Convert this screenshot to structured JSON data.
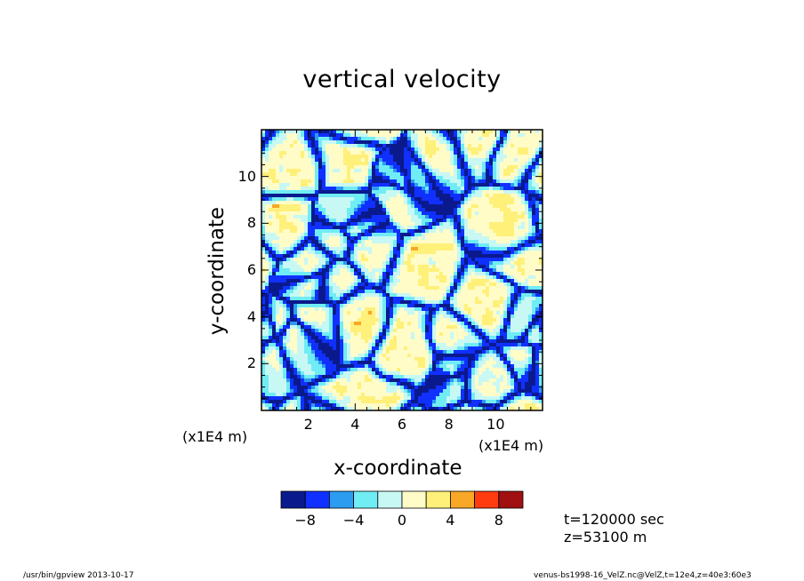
{
  "chart_data": {
    "type": "heatmap",
    "title": "vertical velocity",
    "xlabel": "x-coordinate",
    "ylabel": "y-coordinate",
    "x_unit_label": "(x1E4 m)",
    "y_unit_label": "(x1E4 m)",
    "xlim": [
      0,
      12
    ],
    "ylim": [
      0,
      12
    ],
    "x_ticks": [
      "2",
      "4",
      "6",
      "8",
      "10"
    ],
    "y_ticks": [
      "2",
      "4",
      "6",
      "8",
      "10"
    ],
    "colorbar": {
      "levels": [
        -10,
        -8,
        -6,
        -4,
        -2,
        0,
        2,
        4,
        6,
        8,
        10
      ],
      "tick_labels": [
        "-8",
        "-4",
        "0",
        "4",
        "8"
      ],
      "colors": [
        "#0a1a8c",
        "#1030ff",
        "#2c9cf0",
        "#70ecf4",
        "#c8f8f4",
        "#fffcc8",
        "#fff07a",
        "#f8a826",
        "#ff3c10",
        "#a01010"
      ]
    },
    "pattern": "convective cells: broad yellow (weak upward) regions bounded by narrow blue downdraft lanes, with scattered orange updraft spots"
  },
  "annotations": {
    "time": "t=120000 sec",
    "z": "z=53100 m"
  },
  "footer": {
    "left": "/usr/bin/gpview   2013-10-17",
    "right": "venus-bs1998-16_VelZ.nc@VelZ,t=12e4,z=40e3:60e3"
  }
}
